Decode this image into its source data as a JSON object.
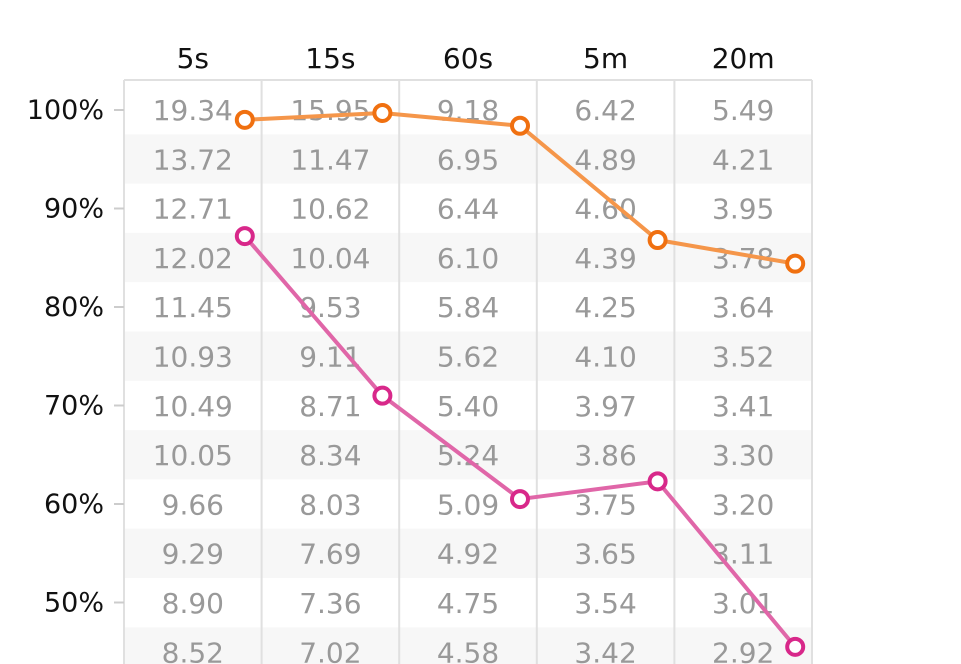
{
  "chart_data": {
    "type": "table",
    "columns": [
      "5s",
      "15s",
      "60s",
      "5m",
      "20m"
    ],
    "rows": [
      [
        "19.34",
        "15.95",
        "9.18",
        "6.42",
        "5.49"
      ],
      [
        "13.72",
        "11.47",
        "6.95",
        "4.89",
        "4.21"
      ],
      [
        "12.71",
        "10.62",
        "6.44",
        "4.60",
        "3.95"
      ],
      [
        "12.02",
        "10.04",
        "6.10",
        "4.39",
        "3.78"
      ],
      [
        "11.45",
        "9.53",
        "5.84",
        "4.25",
        "3.64"
      ],
      [
        "10.93",
        "9.11",
        "5.62",
        "4.10",
        "3.52"
      ],
      [
        "10.49",
        "8.71",
        "5.40",
        "3.97",
        "3.41"
      ],
      [
        "10.05",
        "8.34",
        "5.24",
        "3.86",
        "3.30"
      ],
      [
        "9.66",
        "8.03",
        "5.09",
        "3.75",
        "3.20"
      ],
      [
        "9.29",
        "7.69",
        "4.92",
        "3.65",
        "3.11"
      ],
      [
        "8.90",
        "7.36",
        "4.75",
        "3.54",
        "3.01"
      ],
      [
        "8.52",
        "7.02",
        "4.58",
        "3.42",
        "2.92"
      ]
    ],
    "y_axis": {
      "ticks": [
        100,
        90,
        80,
        70,
        60,
        50
      ],
      "tick_labels": [
        "100%",
        "90%",
        "80%",
        "70%",
        "60%",
        "50%"
      ],
      "range": [
        45,
        100
      ]
    },
    "series": [
      {
        "color": "#f5964a",
        "marker_color": "#f07010",
        "values": [
          99,
          99.7,
          98.4,
          86.8,
          84.4
        ]
      },
      {
        "color": "#e066a8",
        "marker_color": "#d8288a",
        "values": [
          87.2,
          71.0,
          60.5,
          62.3,
          45.5
        ]
      }
    ],
    "grid": true,
    "striped_rows": true
  }
}
